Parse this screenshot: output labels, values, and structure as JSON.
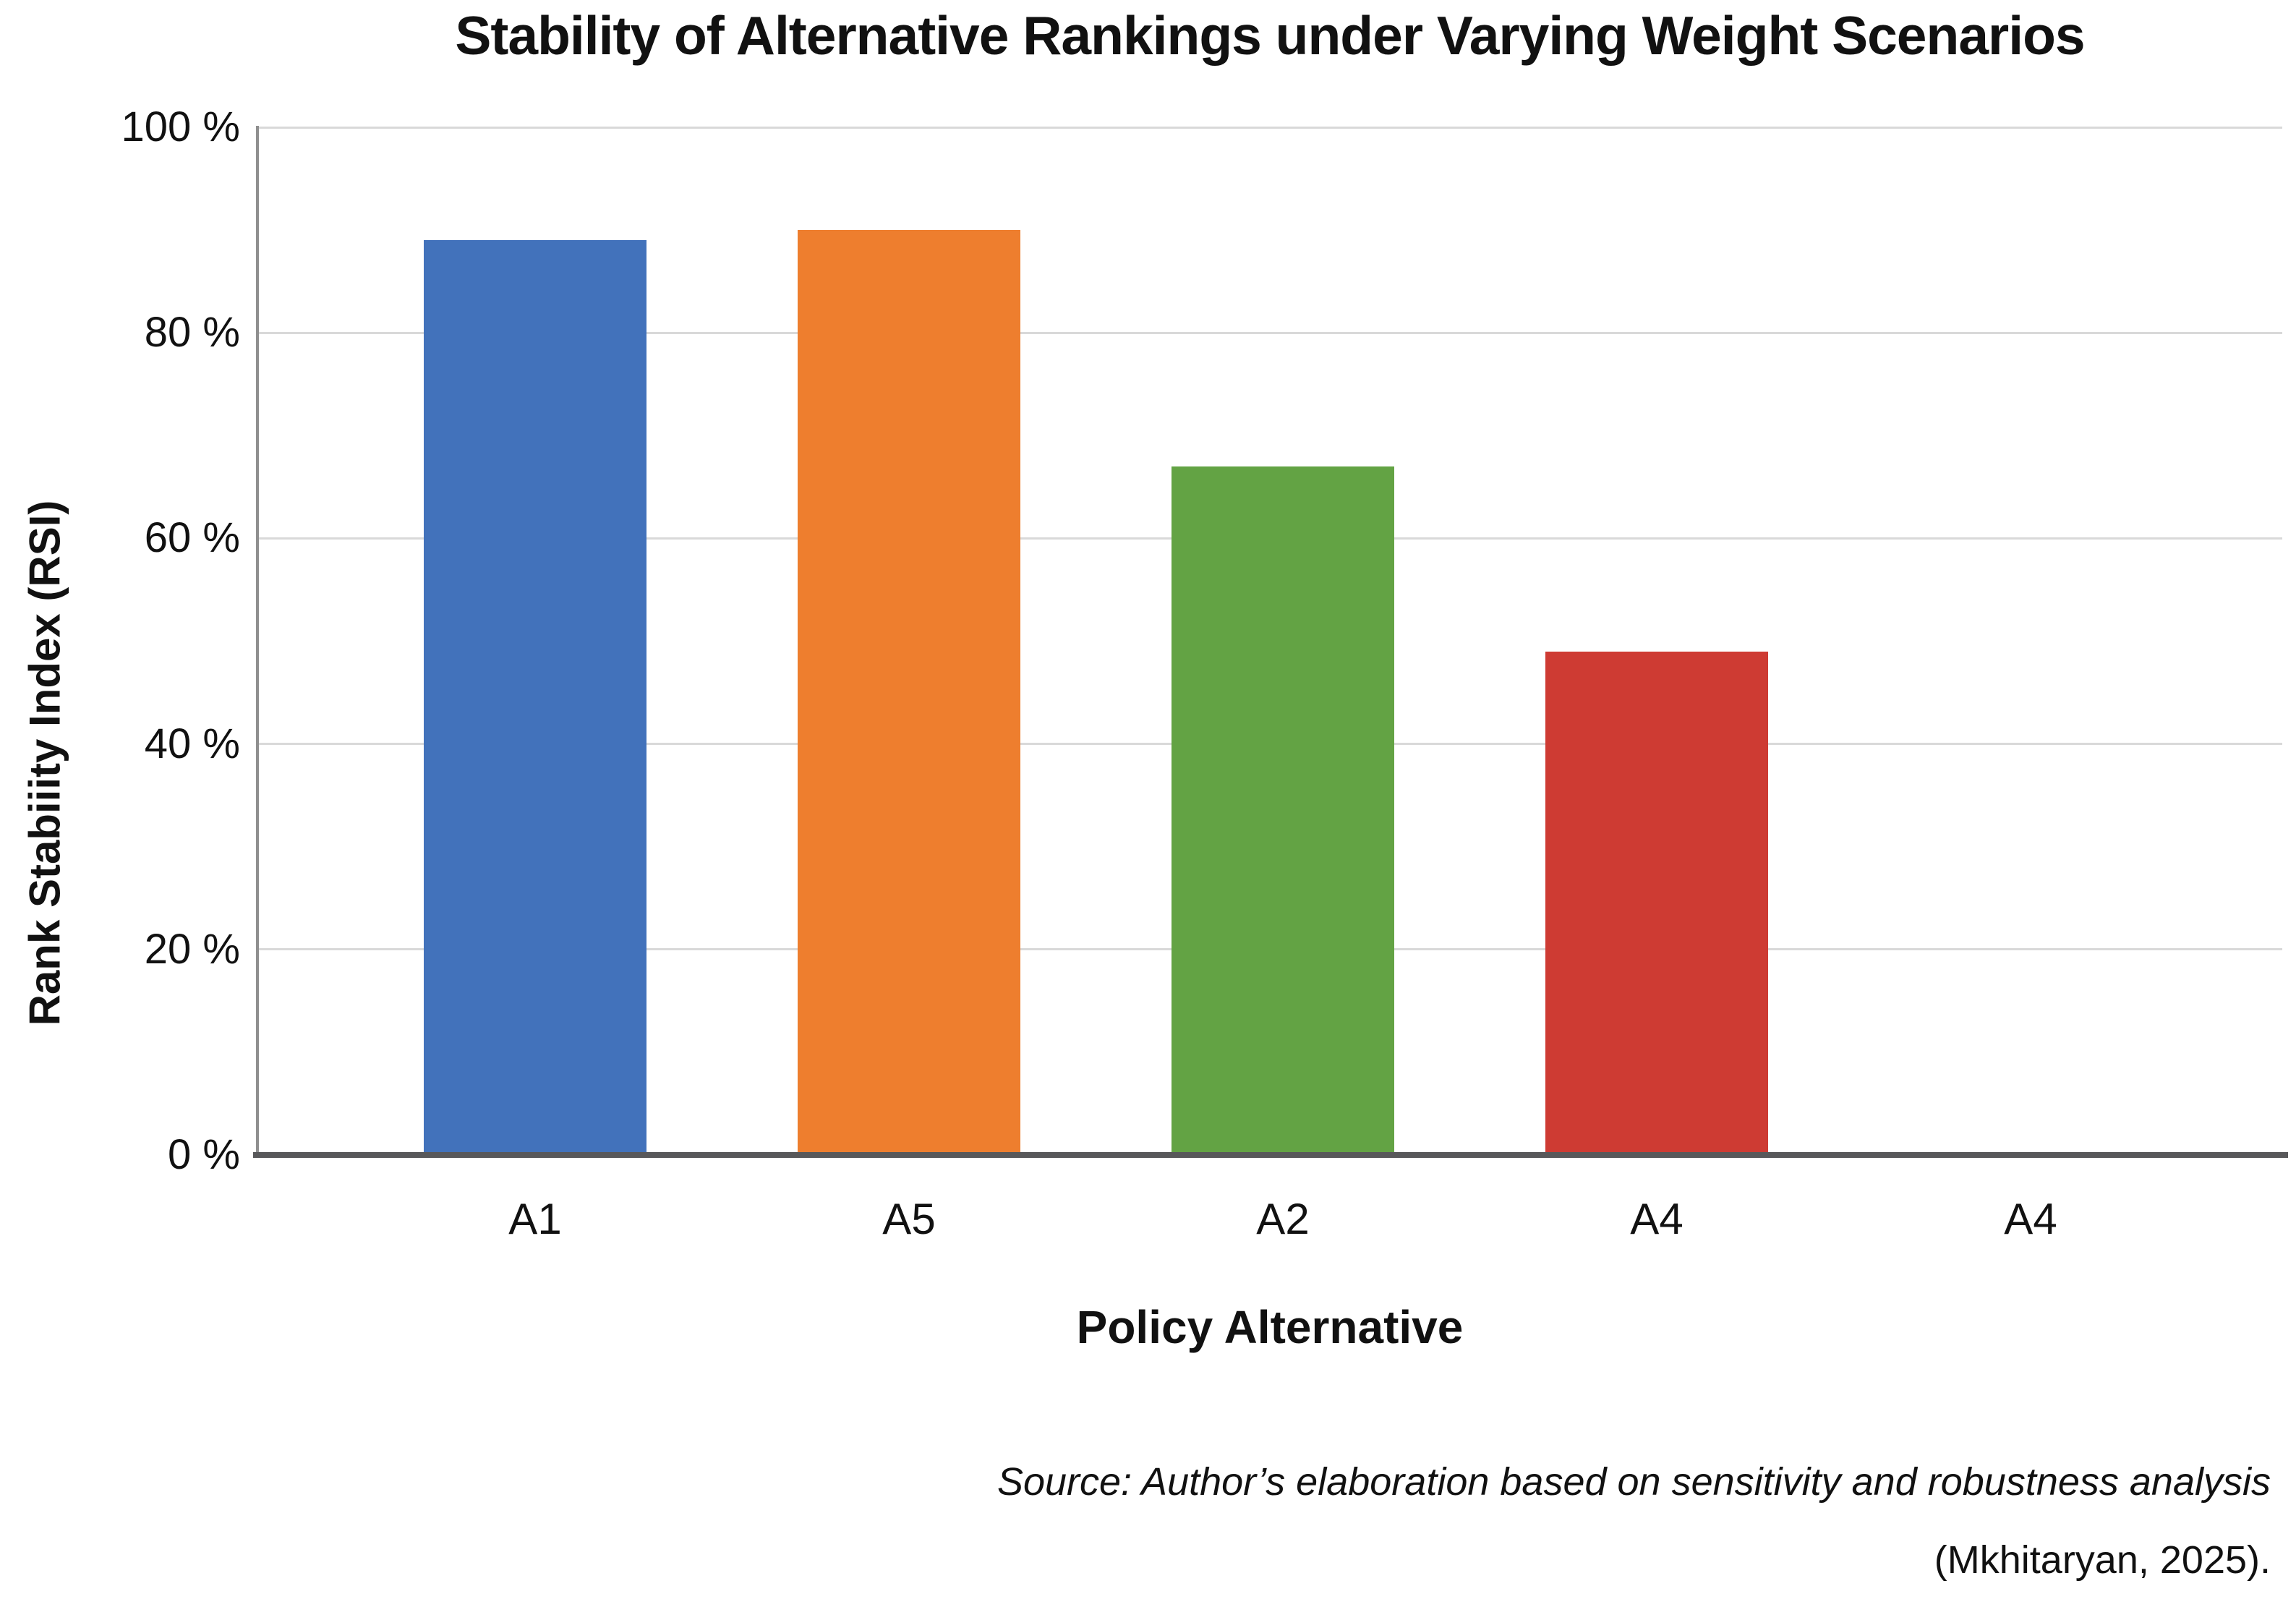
{
  "chart_data": {
    "type": "bar",
    "title": "Stability of Alternative Rankings under Varying Weight Scenarios",
    "xlabel": "Policy Alternative",
    "ylabel": "Rank Stabiiity Index (RSI)",
    "categories": [
      "A1",
      "A5",
      "A2",
      "A4",
      "A4"
    ],
    "values": [
      89,
      90,
      67,
      49,
      0
    ],
    "bar_colors": [
      "#4272BB",
      "#EE7E2E",
      "#63A344",
      "#CE3B33",
      "#8E6BB2"
    ],
    "ylim": [
      0,
      100
    ],
    "yticks": [
      0,
      20,
      40,
      60,
      80,
      100
    ],
    "ytick_labels": [
      "0 %",
      "20 %",
      "40 %",
      "60 %",
      "80 %",
      "100 %"
    ],
    "grid": true,
    "legend_position": "none"
  },
  "source": {
    "line1": "Source: Author’s elaboration based on sensitivity and robustness analysis",
    "line2": "(Mkhitaryan, 2025)."
  },
  "colors": {
    "background": "#FFFFFF",
    "gridline": "#D9D9D9",
    "x_axis_line": "#58585A",
    "y_axis_spine": "#8F8F8F",
    "text": "#111111"
  }
}
